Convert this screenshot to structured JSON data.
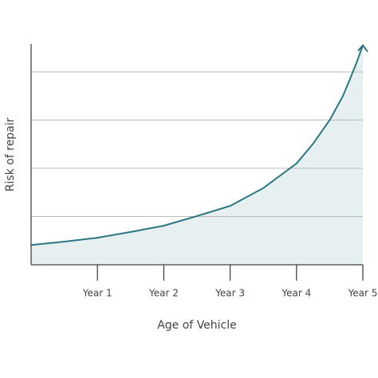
{
  "chart_data": {
    "type": "area",
    "x_label": "Age of Vehicle",
    "y_label": "Risk of repair",
    "x": [
      0,
      0.5,
      1,
      1.5,
      2,
      2.5,
      3,
      3.5,
      4,
      4.25,
      4.5,
      4.7,
      4.8,
      4.9,
      5
    ],
    "values": [
      0.41,
      0.48,
      0.56,
      0.68,
      0.81,
      1.01,
      1.22,
      1.59,
      2.1,
      2.51,
      3.0,
      3.5,
      3.83,
      4.17,
      4.55
    ],
    "color": "#2a7683",
    "fill": "#e6f0f1",
    "xlim": [
      0,
      5
    ],
    "xticks": [
      {
        "value": 1,
        "label": "Year 1"
      },
      {
        "value": 2,
        "label": "Year 2"
      },
      {
        "value": 3,
        "label": "Year 3"
      },
      {
        "value": 4,
        "label": "Year 4"
      },
      {
        "value": 5,
        "label": "Year 5"
      }
    ],
    "ylim": [
      0,
      4.58
    ],
    "ygrid": [
      1,
      2,
      3,
      4
    ]
  }
}
